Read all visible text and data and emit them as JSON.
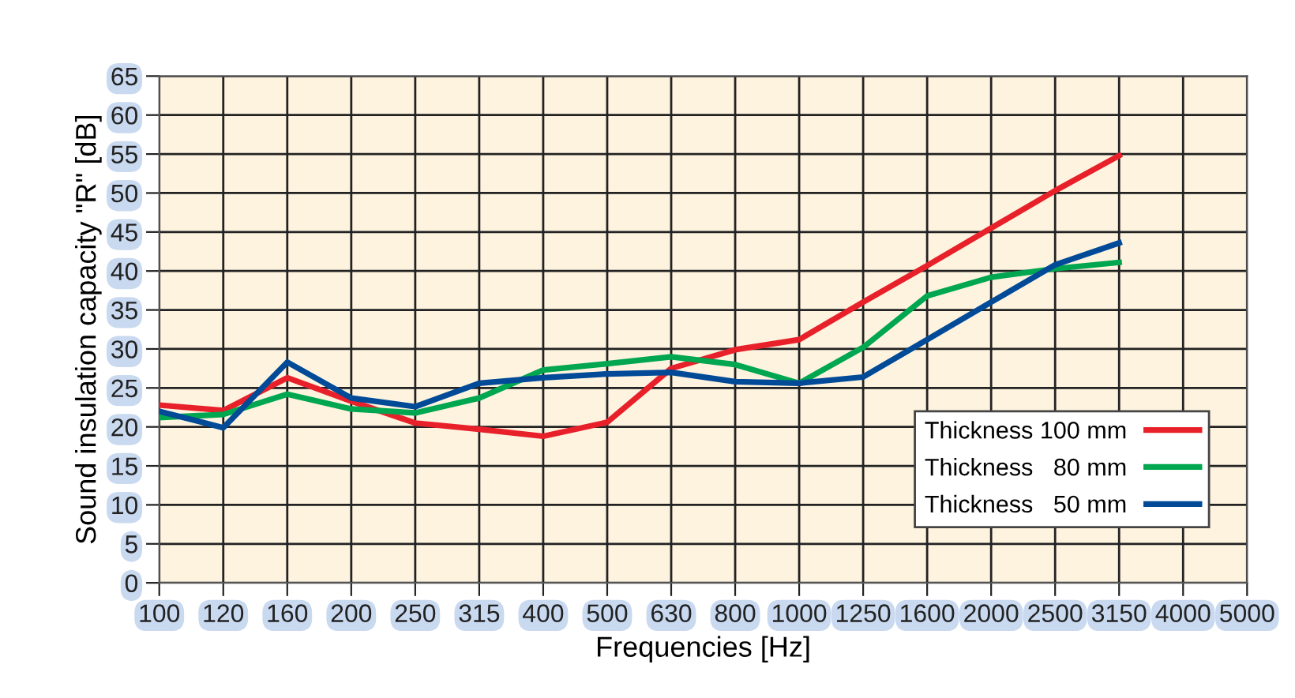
{
  "chart_data": {
    "type": "line",
    "xlabel": "Frequencies [Hz]",
    "ylabel": "Sound insulation capacity \"R\" [dB]",
    "categories": [
      "100",
      "120",
      "160",
      "200",
      "250",
      "315",
      "400",
      "500",
      "630",
      "800",
      "1000",
      "1250",
      "1600",
      "2000",
      "2500",
      "3150",
      "4000",
      "5000"
    ],
    "series": [
      {
        "name": "Thickness 100 mm",
        "color": "#e8202a",
        "values": [
          22.8,
          22.1,
          26.3,
          23.3,
          20.5,
          19.7,
          18.8,
          20.6,
          27.5,
          29.9,
          31.2,
          36,
          40.7,
          45.5,
          50.3,
          54.8,
          null,
          null
        ]
      },
      {
        "name": "Thickness   80 mm",
        "color": "#00a650",
        "values": [
          21.2,
          21.6,
          24.2,
          22.3,
          21.8,
          23.7,
          27.3,
          28.1,
          29,
          28,
          25.6,
          30.2,
          36.8,
          39.2,
          40.3,
          41.1,
          null,
          null
        ]
      },
      {
        "name": "Thickness   50 mm",
        "color": "#004a98",
        "values": [
          22,
          19.9,
          28.3,
          23.7,
          22.6,
          25.6,
          26.3,
          26.8,
          27,
          25.8,
          25.6,
          26.4,
          31.2,
          36,
          40.8,
          43.6,
          null,
          null
        ]
      }
    ],
    "ylim": [
      0,
      65
    ],
    "yticks": [
      0,
      5,
      10,
      15,
      20,
      25,
      30,
      35,
      40,
      45,
      50,
      55,
      60,
      65
    ],
    "grid": true,
    "legend": "bottom right",
    "marker": "none",
    "line_style": "solid"
  }
}
